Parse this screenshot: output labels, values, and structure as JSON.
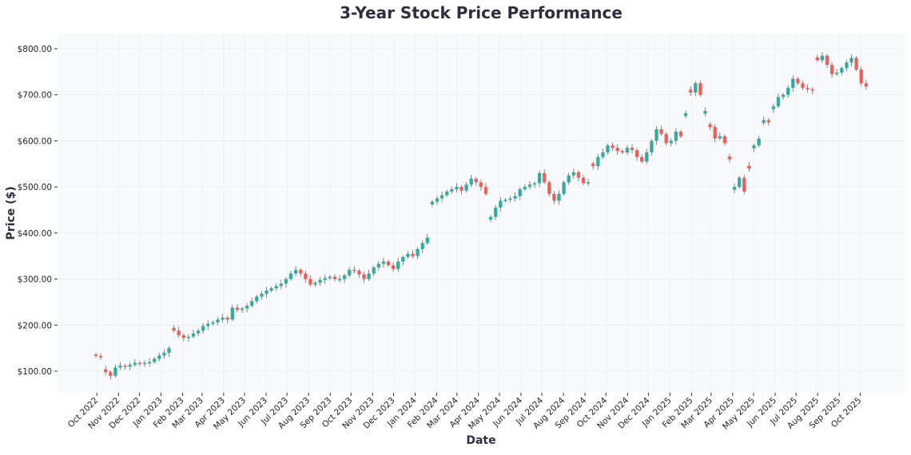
{
  "chart_data": {
    "type": "candlestick",
    "title": "3-Year Stock Price Performance",
    "xlabel": "Date",
    "ylabel": "Price ($)",
    "ylim": [
      55,
      835
    ],
    "yticks": [
      100,
      200,
      300,
      400,
      500,
      600,
      700,
      800
    ],
    "ytick_labels": [
      "$100.00",
      "$200.00",
      "$300.00",
      "$400.00",
      "$500.00",
      "$600.00",
      "$700.00",
      "$800.00"
    ],
    "xtick_labels": [
      "Oct 2022",
      "Nov 2022",
      "Dec 2022",
      "Jan 2023",
      "Feb 2023",
      "Mar 2023",
      "Apr 2023",
      "May 2023",
      "Jun 2023",
      "Jul 2023",
      "Aug 2023",
      "Sep 2023",
      "Oct 2023",
      "Nov 2023",
      "Dec 2023",
      "Jan 2024",
      "Feb 2024",
      "Mar 2024",
      "Apr 2024",
      "May 2024",
      "Jun 2024",
      "Jul 2024",
      "Aug 2024",
      "Sep 2024",
      "Oct 2024",
      "Nov 2024",
      "Dec 2024",
      "Jan 2025",
      "Feb 2025",
      "Mar 2025",
      "Apr 2025",
      "May 2025",
      "Jun 2025",
      "Jul 2025",
      "Aug 2025",
      "Sep 2025",
      "Oct 2025"
    ],
    "grid": true,
    "colors": {
      "up": "#26a69a",
      "down": "#ef5350",
      "background": "#f8f9fb",
      "title": "#2e2e3e"
    },
    "frequency": "weekly",
    "start_date": "2022-10-03",
    "close": [
      133,
      130,
      98,
      90,
      108,
      112,
      110,
      114,
      118,
      116,
      118,
      120,
      127,
      134,
      140,
      150,
      188,
      178,
      172,
      175,
      182,
      188,
      198,
      203,
      206,
      212,
      216,
      212,
      238,
      233,
      236,
      242,
      252,
      262,
      268,
      275,
      280,
      285,
      290,
      300,
      312,
      320,
      312,
      300,
      288,
      292,
      298,
      302,
      305,
      300,
      300,
      308,
      320,
      318,
      310,
      300,
      312,
      325,
      333,
      338,
      330,
      322,
      338,
      348,
      355,
      350,
      365,
      378,
      390,
      468,
      475,
      482,
      490,
      495,
      500,
      492,
      505,
      518,
      510,
      500,
      485,
      435,
      455,
      470,
      472,
      475,
      480,
      495,
      500,
      505,
      508,
      530,
      510,
      485,
      470,
      485,
      510,
      525,
      532,
      520,
      508,
      510,
      545,
      565,
      575,
      590,
      585,
      578,
      575,
      585,
      580,
      565,
      555,
      575,
      600,
      625,
      615,
      595,
      600,
      620,
      610,
      660,
      705,
      725,
      700,
      665,
      630,
      605,
      610,
      595,
      560,
      500,
      520,
      490,
      540,
      590,
      605,
      645,
      640,
      675,
      695,
      700,
      715,
      735,
      725,
      715,
      712,
      710,
      775,
      785,
      765,
      745,
      748,
      758,
      770,
      780,
      755,
      725,
      718
    ]
  }
}
